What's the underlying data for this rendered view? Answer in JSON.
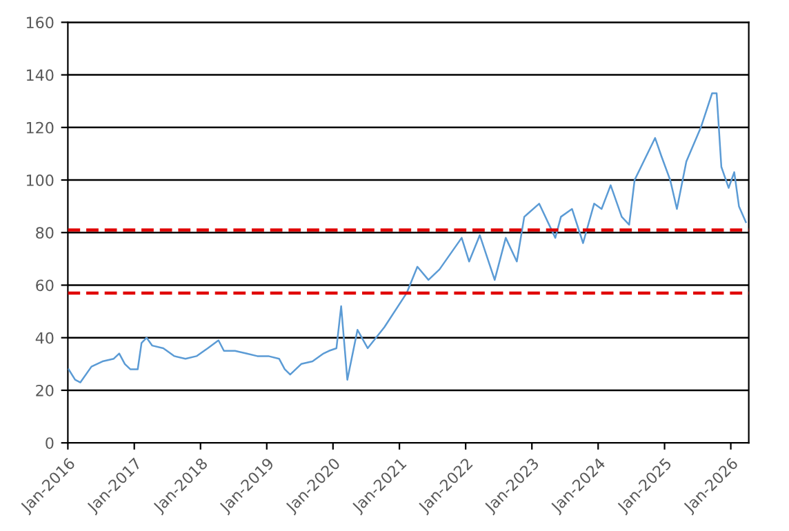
{
  "chart_data": {
    "type": "line",
    "x": [
      "2016-01-05",
      "2016-02-10",
      "2016-03-10",
      "2016-05-10",
      "2016-07-10",
      "2016-09-10",
      "2016-10-10",
      "2016-11-10",
      "2016-12-10",
      "2017-01-20",
      "2017-02-10",
      "2017-03-10",
      "2017-04-10",
      "2017-06-10",
      "2017-08-10",
      "2017-10-10",
      "2017-12-10",
      "2018-02-10",
      "2018-04-10",
      "2018-05-10",
      "2018-07-10",
      "2018-09-10",
      "2018-11-10",
      "2019-01-10",
      "2019-03-10",
      "2019-04-10",
      "2019-05-10",
      "2019-07-10",
      "2019-09-10",
      "2019-11-10",
      "2019-12-10",
      "2020-01-20",
      "2020-02-15",
      "2020-03-20",
      "2020-05-15",
      "2020-07-10",
      "2020-10-10",
      "2021-02-10",
      "2021-04-10",
      "2021-06-10",
      "2021-08-10",
      "2021-12-10",
      "2022-01-20",
      "2022-03-20",
      "2022-06-10",
      "2022-08-10",
      "2022-10-10",
      "2022-11-20",
      "2023-02-10",
      "2023-05-10",
      "2023-06-10",
      "2023-08-10",
      "2023-10-10",
      "2023-12-10",
      "2024-01-20",
      "2024-03-10",
      "2024-05-10",
      "2024-06-20",
      "2024-07-20",
      "2024-11-10",
      "2024-12-15",
      "2025-02-01",
      "2025-03-10",
      "2025-05-01",
      "2025-07-20",
      "2025-09-20",
      "2025-10-15",
      "2025-11-10",
      "2025-12-20",
      "2026-01-20",
      "2026-02-15",
      "2026-03-25"
    ],
    "series": [
      {
        "color": "#5b9bd5",
        "values": [
          28,
          24,
          23,
          29,
          31,
          32,
          34,
          30,
          28,
          28,
          38,
          40,
          37,
          36,
          33,
          32,
          33,
          36,
          39,
          35,
          35,
          34,
          33,
          33,
          32,
          28,
          26,
          30,
          31,
          34,
          35,
          36,
          52,
          24,
          43,
          36,
          44,
          57,
          67,
          62,
          66,
          78,
          69,
          79,
          62,
          78,
          69,
          86,
          91,
          78,
          86,
          89,
          76,
          91,
          89,
          98,
          86,
          83,
          100,
          116,
          109,
          100,
          89,
          107,
          120,
          133,
          133,
          105,
          97,
          103,
          90,
          84
        ]
      }
    ],
    "xlim": [
      "2016-01-01",
      "2026-04-10"
    ],
    "xticks": [
      {
        "value": "2016-01-01",
        "label": "Jan-2016"
      },
      {
        "value": "2017-01-01",
        "label": "Jan-2017"
      },
      {
        "value": "2018-01-01",
        "label": "Jan-2018"
      },
      {
        "value": "2019-01-01",
        "label": "Jan-2019"
      },
      {
        "value": "2020-01-01",
        "label": "Jan-2020"
      },
      {
        "value": "2021-01-01",
        "label": "Jan-2021"
      },
      {
        "value": "2022-01-01",
        "label": "Jan-2022"
      },
      {
        "value": "2023-01-01",
        "label": "Jan-2023"
      },
      {
        "value": "2024-01-01",
        "label": "Jan-2024"
      },
      {
        "value": "2025-01-01",
        "label": "Jan-2025"
      },
      {
        "value": "2026-01-01",
        "label": "Jan-2026"
      }
    ],
    "ylim": [
      0,
      160
    ],
    "yticks": [
      0,
      20,
      40,
      60,
      80,
      100,
      120,
      140,
      160
    ],
    "grid": "y",
    "marker": "none",
    "line_style": "solid",
    "ref_lines": [
      {
        "axis": "y",
        "value": 81,
        "color": "#e00000",
        "line_style": "dashed"
      },
      {
        "axis": "y",
        "value": 57,
        "color": "#e00000",
        "line_style": "dashed"
      }
    ]
  }
}
